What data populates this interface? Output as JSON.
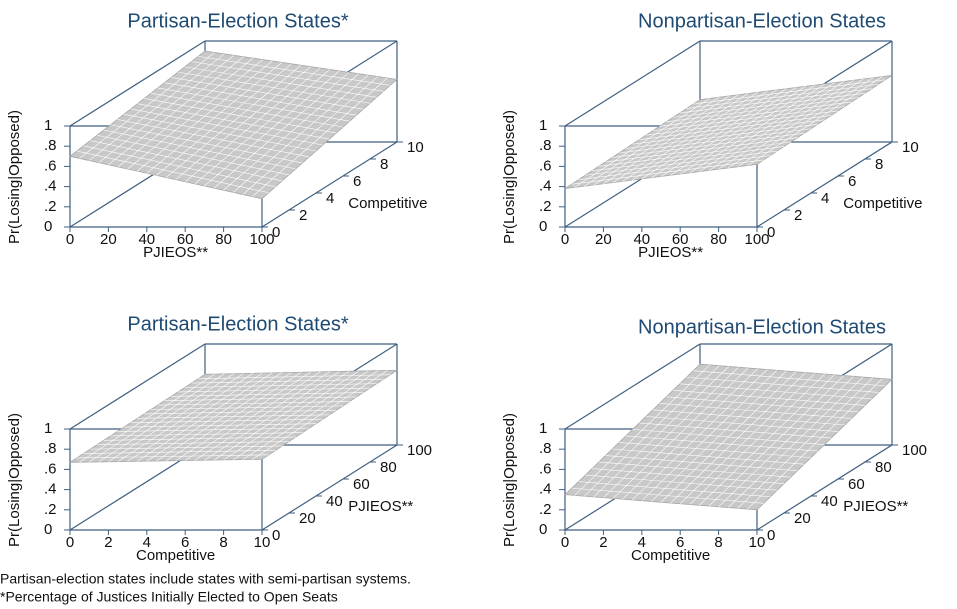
{
  "chart_data": [
    {
      "type": "surface3d",
      "title": "Partisan-Election States*",
      "xlabel": "PJIEOS**",
      "ylabel": "Competitive",
      "zlabel": "Pr(Losing|Opposed)",
      "xlim": [
        0,
        100
      ],
      "xticks": [
        0,
        20,
        40,
        60,
        80,
        100
      ],
      "ylim": [
        0,
        10
      ],
      "yticks": [
        0,
        2,
        4,
        6,
        8,
        10
      ],
      "zlim": [
        0,
        1
      ],
      "zticks": [
        0,
        {
          "value": 0.2,
          "label": ".2"
        },
        {
          "value": 0.4,
          "label": ".4"
        },
        {
          "value": 0.6,
          "label": ".6"
        },
        {
          "value": 0.8,
          "label": ".8"
        },
        1
      ],
      "z": [
        [
          0.7,
          0.28
        ],
        [
          0.9,
          0.62
        ]
      ],
      "color": "#c8c8c8"
    },
    {
      "type": "surface3d",
      "title": "Nonpartisan-Election States",
      "xlabel": "PJIEOS**",
      "ylabel": "Competitive",
      "zlabel": "Pr(Losing|Opposed)",
      "xlim": [
        0,
        100
      ],
      "xticks": [
        0,
        20,
        40,
        60,
        80,
        100
      ],
      "ylim": [
        0,
        10
      ],
      "yticks": [
        0,
        2,
        4,
        6,
        8,
        10
      ],
      "zlim": [
        0,
        1
      ],
      "zticks": [
        0,
        {
          "value": 0.2,
          "label": ".2"
        },
        {
          "value": 0.4,
          "label": ".4"
        },
        {
          "value": 0.6,
          "label": ".6"
        },
        {
          "value": 0.8,
          "label": ".8"
        },
        1
      ],
      "z": [
        [
          0.38,
          0.62
        ],
        [
          0.42,
          0.66
        ]
      ],
      "color": "#c8c8c8"
    },
    {
      "type": "surface3d",
      "title": "Partisan-Election States*",
      "xlabel": "Competitive",
      "ylabel": "PJIEOS**",
      "zlabel": "Pr(Losing|Opposed)",
      "xlim": [
        0,
        10
      ],
      "xticks": [
        0,
        2,
        4,
        6,
        8,
        10
      ],
      "ylim": [
        0,
        100
      ],
      "yticks": [
        0,
        20,
        40,
        60,
        80,
        100
      ],
      "zlim": [
        0,
        1
      ],
      "zticks": [
        0,
        {
          "value": 0.2,
          "label": ".2"
        },
        {
          "value": 0.4,
          "label": ".4"
        },
        {
          "value": 0.6,
          "label": ".6"
        },
        {
          "value": 0.8,
          "label": ".8"
        },
        1
      ],
      "z": [
        [
          0.67,
          0.7
        ],
        [
          0.7,
          0.74
        ]
      ],
      "color": "#c8c8c8"
    },
    {
      "type": "surface3d",
      "title": "Nonpartisan-Election States",
      "xlabel": "Competitive",
      "ylabel": "PJIEOS**",
      "zlabel": "Pr(Losing|Opposed)",
      "xlim": [
        0,
        10
      ],
      "xticks": [
        0,
        2,
        4,
        6,
        8,
        10
      ],
      "ylim": [
        0,
        100
      ],
      "yticks": [
        0,
        20,
        40,
        60,
        80,
        100
      ],
      "zlim": [
        0,
        1
      ],
      "zticks": [
        0,
        {
          "value": 0.2,
          "label": ".2"
        },
        {
          "value": 0.4,
          "label": ".4"
        },
        {
          "value": 0.6,
          "label": ".6"
        },
        {
          "value": 0.8,
          "label": ".8"
        },
        1
      ],
      "z": [
        [
          0.35,
          0.2
        ],
        [
          0.8,
          0.65
        ]
      ],
      "color": "#c8c8c8"
    }
  ],
  "notes": [
    "Partisan-election states include states with semi-partisan systems.",
    "*Percentage of Justices Initially Elected to Open Seats"
  ]
}
